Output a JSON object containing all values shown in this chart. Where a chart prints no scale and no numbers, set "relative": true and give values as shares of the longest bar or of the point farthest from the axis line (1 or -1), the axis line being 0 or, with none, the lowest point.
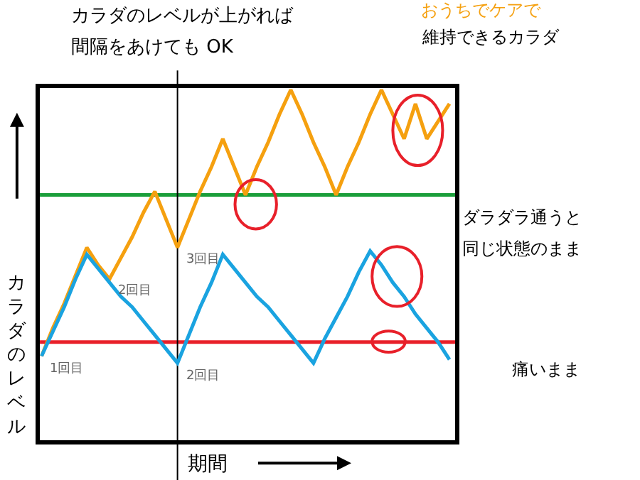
{
  "chart_data": {
    "type": "line",
    "relative": true,
    "grid": false,
    "marker": "none",
    "line_style": "solid",
    "xlabel": "期間",
    "ylabel": "カラダのレベル",
    "categories": [
      null,
      null,
      null,
      null,
      null,
      null,
      null,
      null,
      null,
      null,
      null,
      null,
      null,
      null,
      null,
      null,
      null,
      null,
      null,
      null,
      null,
      null,
      null,
      null,
      null,
      null,
      null,
      null,
      null,
      null,
      null,
      null,
      null,
      null,
      null,
      null,
      null
    ],
    "series": [
      {
        "color": "#f5a00f",
        "values": [
          0.24,
          0.32,
          0.39,
          0.47,
          0.55,
          0.5,
          0.46,
          0.52,
          0.58,
          0.65,
          0.71,
          0.63,
          0.55,
          0.63,
          0.71,
          0.78,
          0.86,
          0.78,
          0.7,
          0.78,
          0.85,
          0.93,
          1,
          0.93,
          0.85,
          0.78,
          0.7,
          0.78,
          0.85,
          0.93,
          1,
          0.93,
          0.86,
          0.96,
          0.86,
          0.91,
          0.96
        ]
      },
      {
        "color": "#1aa3e0",
        "values": [
          0.24,
          0.31,
          0.38,
          0.46,
          0.53,
          0.49,
          0.45,
          0.41,
          0.38,
          0.34,
          0.3,
          0.26,
          0.22,
          0.3,
          0.38,
          0.45,
          0.53,
          0.49,
          0.45,
          0.41,
          0.38,
          0.34,
          0.3,
          0.26,
          0.22,
          0.29,
          0.35,
          0.41,
          0.48,
          0.54,
          0.5,
          0.45,
          0.41,
          0.36,
          0.32,
          0.28,
          0.23
        ]
      }
    ],
    "ref_lines": [
      {
        "axis": "y",
        "value": 0.7,
        "color": "#1a9e3a"
      },
      {
        "axis": "y",
        "value": 0.28,
        "color": "#e8202a"
      },
      {
        "axis": "x",
        "color": "#000000"
      }
    ],
    "annotations": [
      "1回目",
      "2回目",
      "3回目",
      "2回目",
      "カラダのレベルが上がれば",
      "間隔をあけても OK",
      "おうちでケアで",
      "維持できるカラダ",
      "ダラダラ通うと",
      "同じ状態のまま",
      "痛いまま"
    ]
  }
}
